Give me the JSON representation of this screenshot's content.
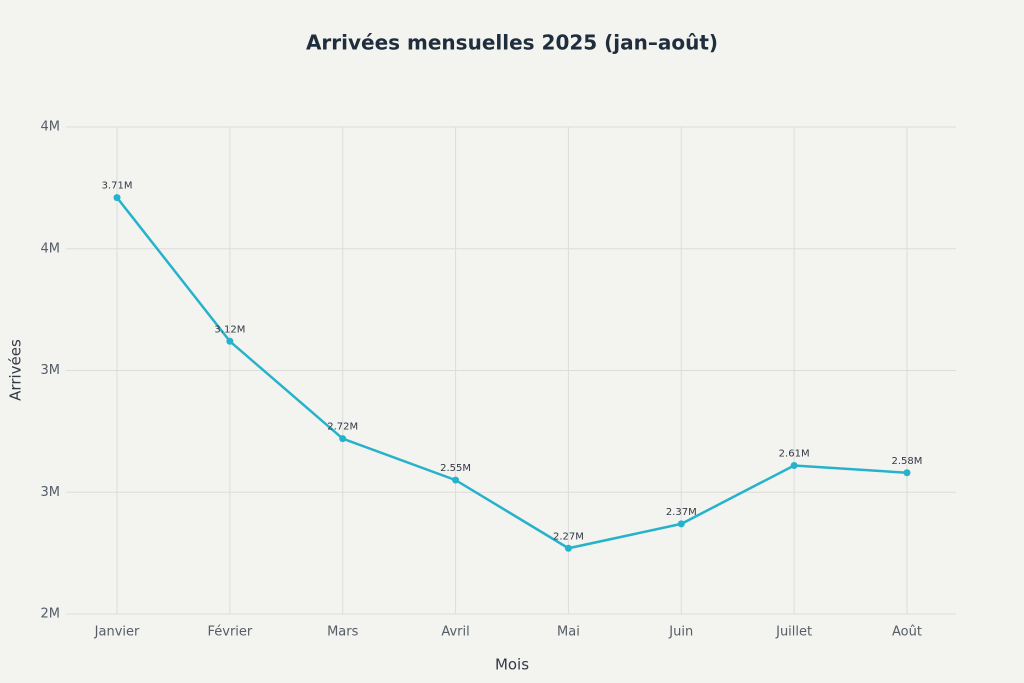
{
  "chart_data": {
    "type": "line",
    "title": "Arrivées mensuelles 2025 (jan–août)",
    "x_label": "Mois",
    "y_label": "Arrivées",
    "categories": [
      "Janvier",
      "Février",
      "Mars",
      "Avril",
      "Mai",
      "Juin",
      "Juillet",
      "Août"
    ],
    "values": [
      3710000,
      3120000,
      2720000,
      2550000,
      2270000,
      2370000,
      2610000,
      2580000
    ],
    "value_labels": [
      "3.71M",
      "3.12M",
      "2.72M",
      "2.55M",
      "2.27M",
      "2.37M",
      "2.61M",
      "2.58M"
    ],
    "color": "#27b2cb",
    "ylim": [
      2000000,
      4000000
    ],
    "yticks": [
      {
        "value": 2000000,
        "label": "2M"
      },
      {
        "value": 2500000,
        "label": "3M"
      },
      {
        "value": 3000000,
        "label": "3M"
      },
      {
        "value": 3500000,
        "label": "4M"
      },
      {
        "value": 4000000,
        "label": "4M"
      }
    ],
    "grid": true
  }
}
